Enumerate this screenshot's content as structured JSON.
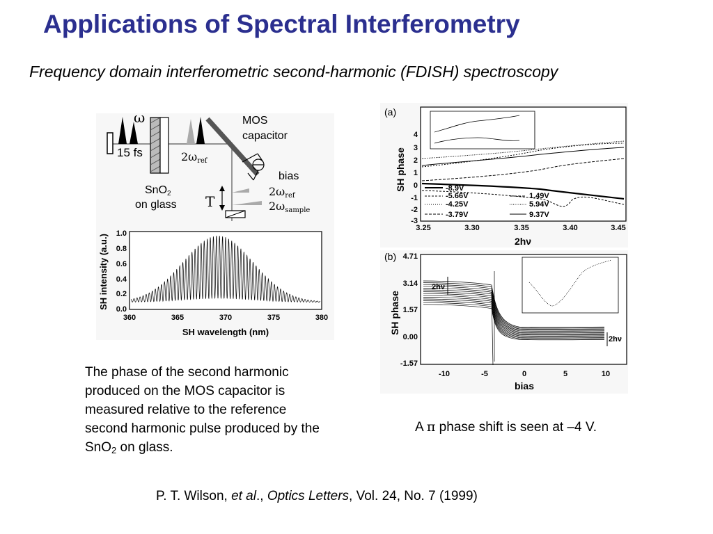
{
  "slide": {
    "title": "Applications of Spectral Interferometry",
    "subtitle": "Frequency domain interferometric second-harmonic (FDISH) spectroscopy"
  },
  "setup_diagram": {
    "omega": "ω",
    "pulse": "15 fs",
    "mos": "MOS",
    "capacitor": "capacitor",
    "two_omega_ref": "2ω",
    "ref_sub": "ref",
    "bias": "bias",
    "sno2": "SnO",
    "sno2_sub": "2",
    "on_glass": "on glass",
    "T": "T",
    "two_omega_ref2": "2ω",
    "ref_sub2": "ref",
    "two_omega_sample": "2ω",
    "sample_sub": "sample"
  },
  "spectrum_plot": {
    "ylabel": "SH intensity (a.u.)",
    "xlabel": "SH wavelength (nm)",
    "yticks": [
      "1.0",
      "0.8",
      "0.6",
      "0.4",
      "0.2",
      "0.0"
    ],
    "xticks": [
      "360",
      "365",
      "370",
      "375",
      "380"
    ]
  },
  "plot_a": {
    "panel_label": "(a)",
    "ylabel": "SH phase",
    "xlabel": "2hν",
    "yticks": [
      "4",
      "3",
      "2",
      "1",
      "0",
      "-1",
      "-2",
      "-3"
    ],
    "xticks": [
      "3.25",
      "3.30",
      "3.35",
      "3.40",
      "3.45"
    ],
    "legend_left": [
      "-8.9V",
      "-5.66V",
      "-4.25V",
      "-3.79V"
    ],
    "legend_right": [
      "1.49V",
      "5.94V",
      "9.37V"
    ]
  },
  "plot_b": {
    "panel_label": "(b)",
    "ylabel": "SH phase",
    "xlabel": "bias",
    "yticks": [
      "4.71",
      "3.14",
      "1.57",
      "0.00",
      "-1.57"
    ],
    "xticks": [
      "-10",
      "-5",
      "0",
      "5",
      "10"
    ],
    "marker_left": "2hν",
    "marker_right": "2hν"
  },
  "captions": {
    "left_line1": "The phase of the second harmonic",
    "left_line2": "produced on the MOS capacitor is",
    "left_line3": "measured relative to the reference",
    "left_line4": "second harmonic pulse produced by the",
    "left_line5_a": "SnO",
    "left_line5_sub": "2",
    "left_line5_b": " on glass.",
    "right_a": "A ",
    "right_pi": "π",
    "right_b": " phase shift is seen at –4 V."
  },
  "citation": {
    "authors": "P. T. Wilson, ",
    "etal": "et al",
    "sep": "., ",
    "journal": "Optics Letters",
    "details": ", Vol. 24, No. 7 (1999)"
  }
}
